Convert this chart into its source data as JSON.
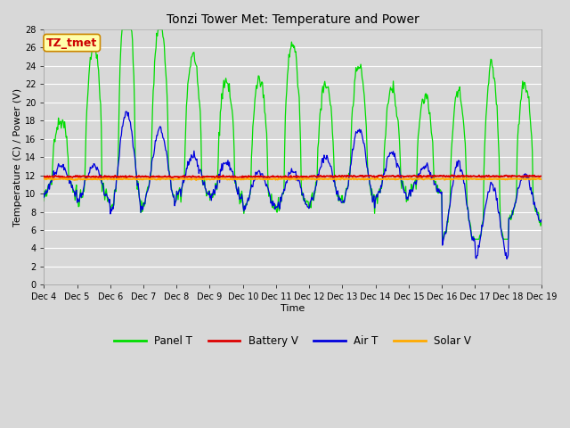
{
  "title": "Tonzi Tower Met: Temperature and Power",
  "xlabel": "Time",
  "ylabel": "Temperature (C) / Power (V)",
  "ylim": [
    0,
    28
  ],
  "yticks": [
    0,
    2,
    4,
    6,
    8,
    10,
    12,
    14,
    16,
    18,
    20,
    22,
    24,
    26,
    28
  ],
  "xtick_labels": [
    "Dec 4",
    "Dec 5",
    "Dec 6",
    "Dec 7",
    "Dec 8",
    "Dec 9",
    "Dec 10",
    "Dec 11",
    "Dec 12",
    "Dec 13",
    "Dec 14",
    "Dec 15",
    "Dec 16",
    "Dec 17",
    "Dec 18",
    "Dec 19"
  ],
  "bg_color": "#d8d8d8",
  "plot_bg_color": "#d8d8d8",
  "grid_color": "#ffffff",
  "annotation_text": "TZ_tmet",
  "annotation_color": "#cc0000",
  "annotation_bg": "#ffffaa",
  "annotation_border": "#cc8800",
  "panel_T_color": "#00dd00",
  "battery_V_color": "#dd0000",
  "air_T_color": "#0000dd",
  "solar_V_color": "#ffaa00",
  "n_points": 720,
  "title_fontsize": 10,
  "axis_fontsize": 8,
  "tick_fontsize": 7
}
